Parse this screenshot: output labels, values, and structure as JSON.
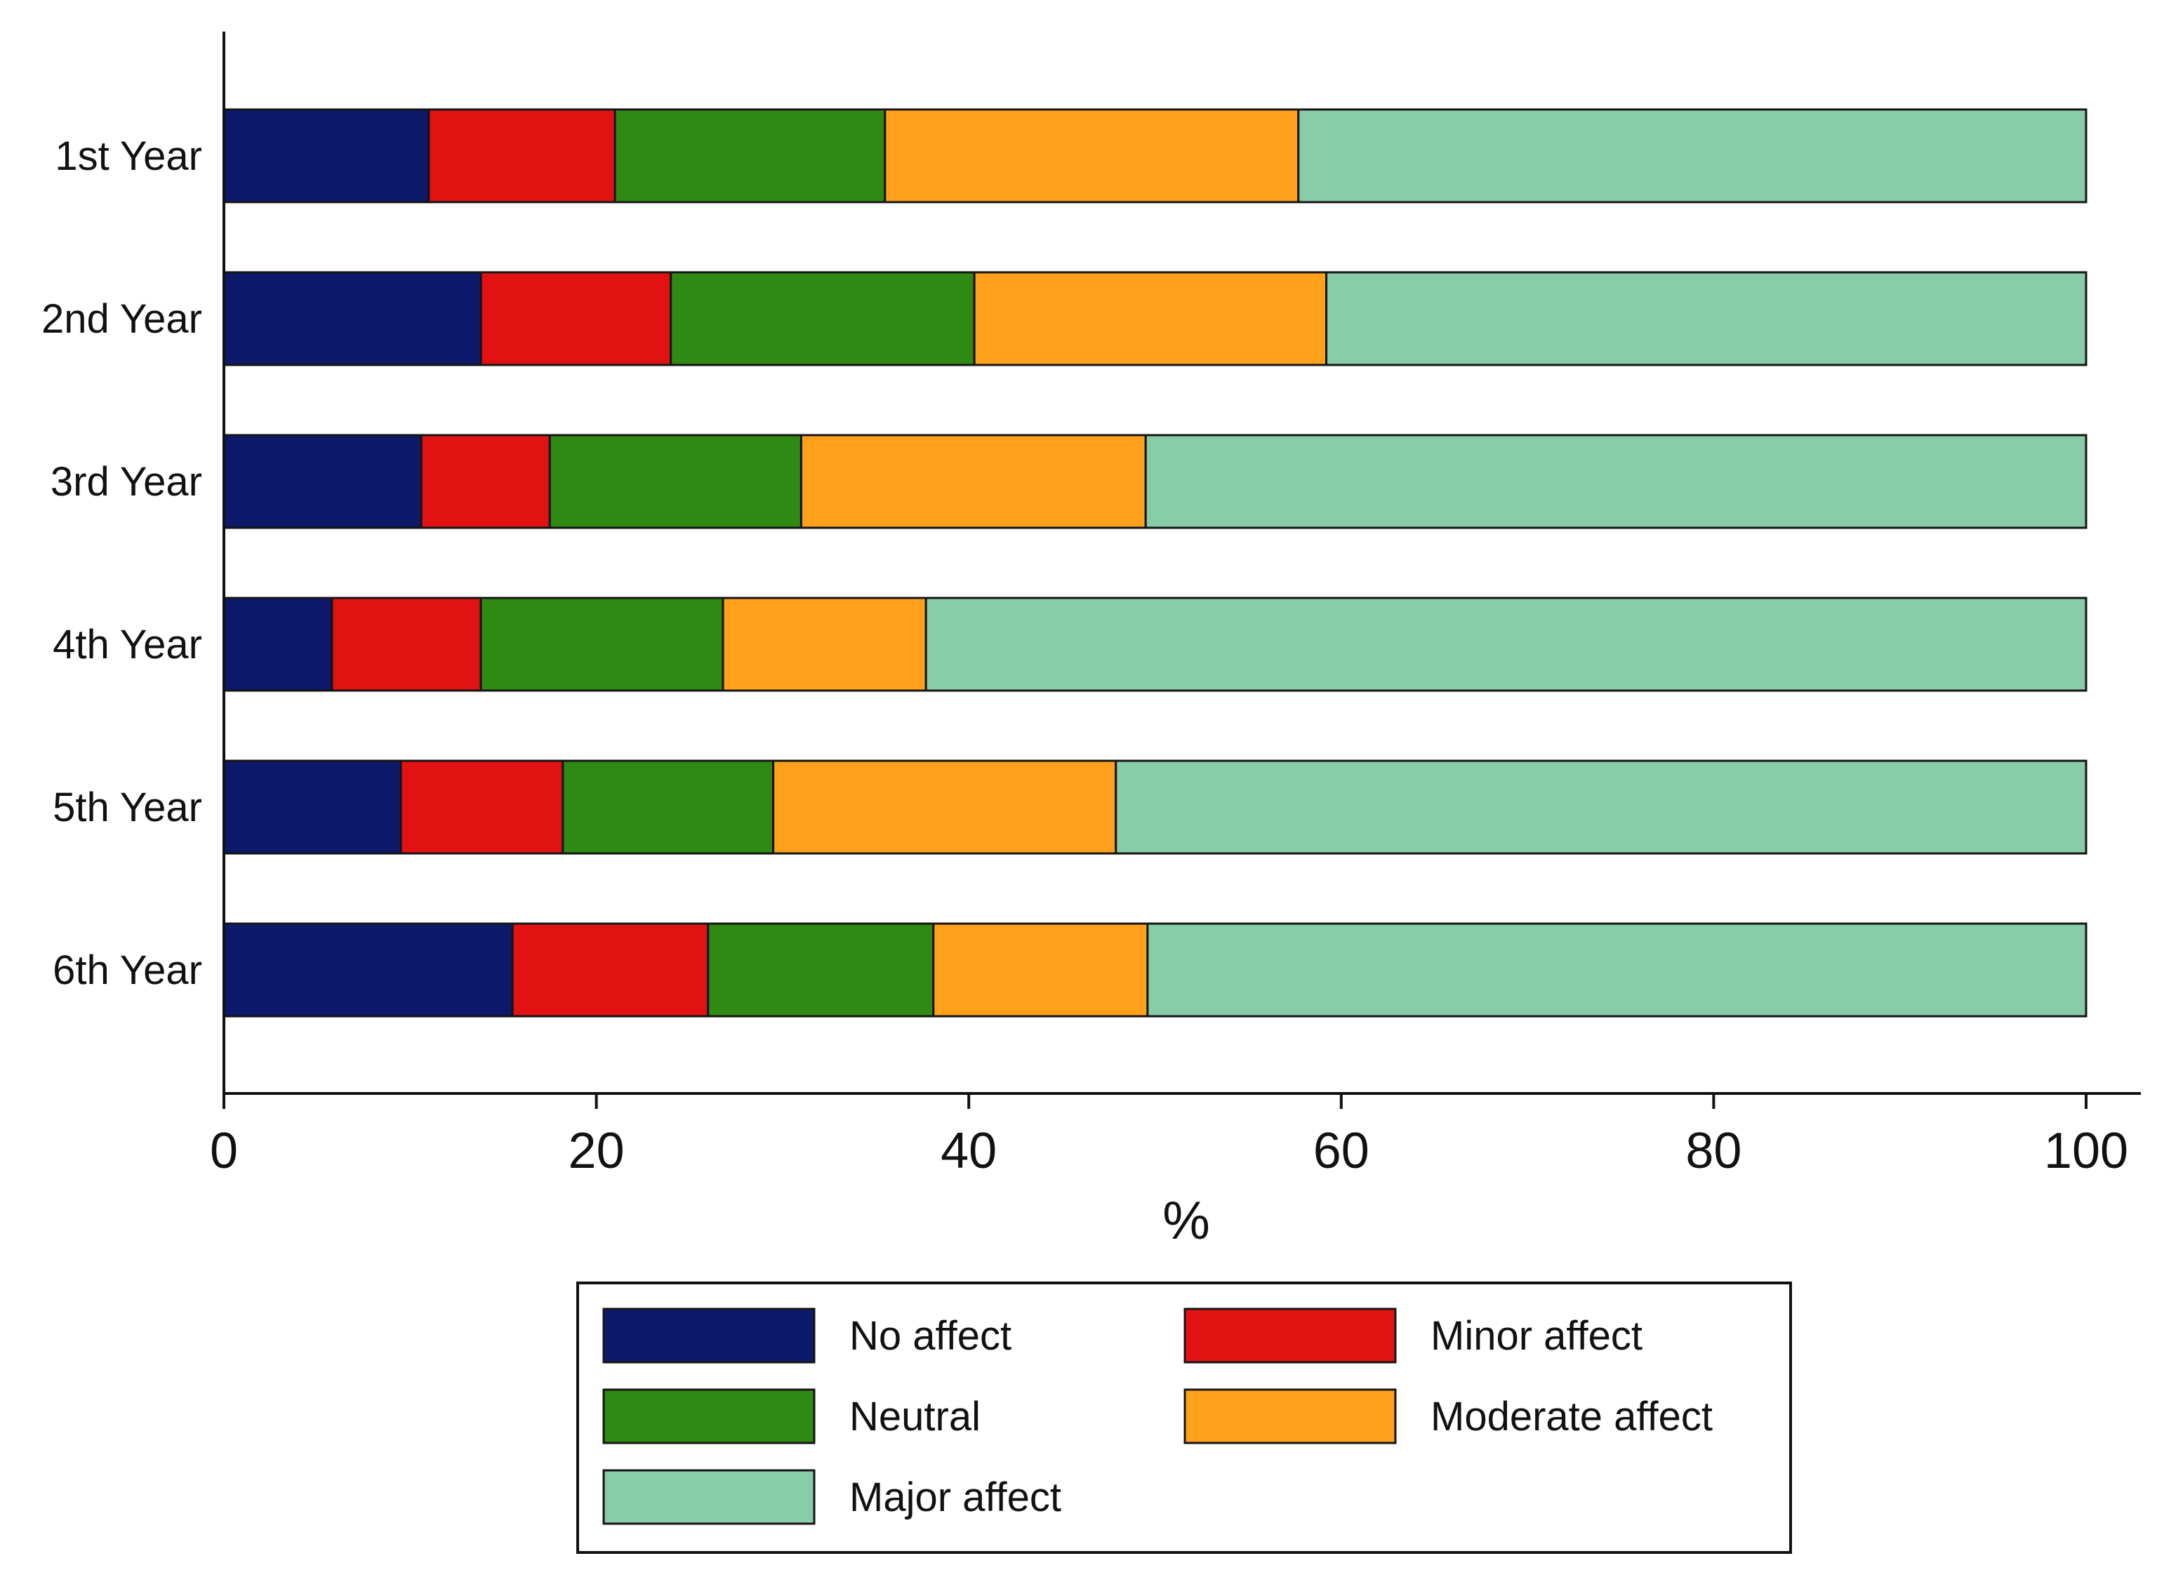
{
  "chart_data": {
    "type": "bar",
    "orientation": "horizontal",
    "stacked": true,
    "title": "",
    "xlabel": "%",
    "ylabel": "",
    "xlim": [
      0,
      100
    ],
    "x_ticks": [
      0,
      20,
      40,
      60,
      80,
      100
    ],
    "x_tick_labels": [
      "0",
      "20",
      "40",
      "60",
      "80",
      "100"
    ],
    "grid": false,
    "legend_position": "bottom",
    "categories": [
      "1st Year",
      "2nd Year",
      "3rd Year",
      "4th Year",
      "5th Year",
      "6th Year"
    ],
    "series": [
      {
        "name": "No affect",
        "color": "#0d1a6b",
        "values": [
          11,
          13.8,
          10.6,
          5.8,
          9.5,
          15.5
        ]
      },
      {
        "name": "Minor affect",
        "color": "#e21212",
        "values": [
          10,
          10.2,
          6.9,
          8,
          8.7,
          10.5
        ]
      },
      {
        "name": "Neutral",
        "color": "#2e8a12",
        "values": [
          14.5,
          16.3,
          13.5,
          13,
          11.3,
          12.1
        ]
      },
      {
        "name": "Moderate affect",
        "color": "#ffa11a",
        "values": [
          22.2,
          18.9,
          18.5,
          10.9,
          18.4,
          11.5
        ]
      },
      {
        "name": "Major affect",
        "color": "#89cca8",
        "values": [
          42.3,
          40.8,
          50.5,
          62.3,
          52.1,
          50.4
        ]
      }
    ]
  }
}
